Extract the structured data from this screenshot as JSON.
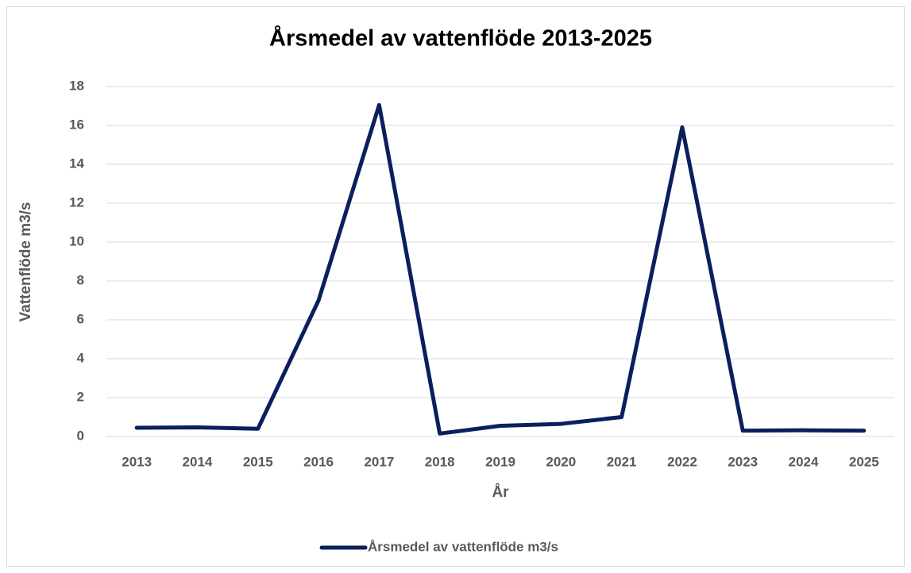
{
  "chart_data": {
    "type": "line",
    "title": "Årsmedel av vattenflöde 2013-2025",
    "x_label": "År",
    "y_label": "Vattenflöde m3/s",
    "categories": [
      "2013",
      "2014",
      "2015",
      "2016",
      "2017",
      "2018",
      "2019",
      "2020",
      "2021",
      "2022",
      "2023",
      "2024",
      "2025"
    ],
    "series": [
      {
        "name": "Årsmedel av vattenflöde m3/s",
        "color": "#0b1f5c",
        "values": [
          0.45,
          0.47,
          0.4,
          7.0,
          17.05,
          0.15,
          0.55,
          0.65,
          1.0,
          15.9,
          0.3,
          0.32,
          0.3
        ]
      }
    ],
    "ylim": [
      0,
      18
    ],
    "yticks": [
      0,
      2,
      4,
      6,
      8,
      10,
      12,
      14,
      16,
      18
    ],
    "grid": true,
    "legend": "bottom"
  }
}
